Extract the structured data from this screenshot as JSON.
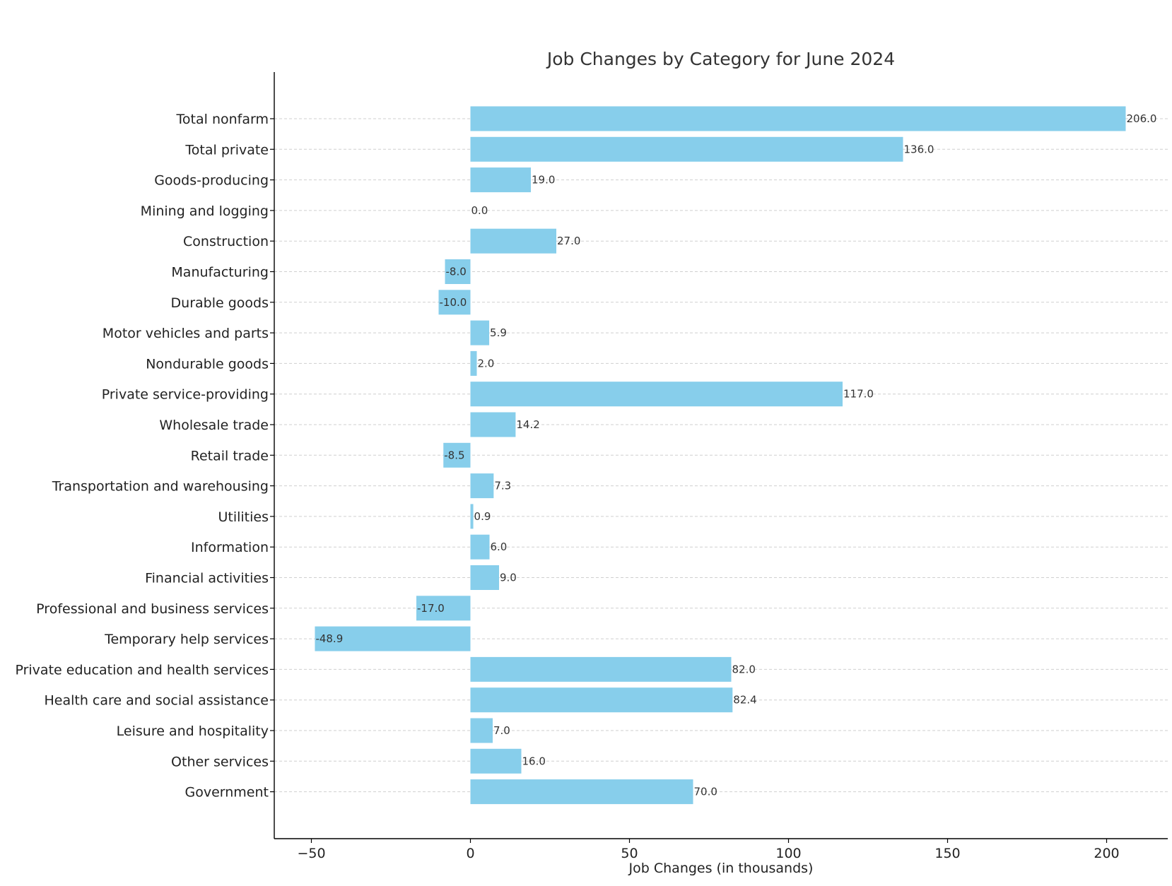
{
  "chart_data": {
    "type": "bar",
    "orientation": "horizontal",
    "title": "Job Changes by Category for June 2024",
    "xlabel": "Job Changes (in thousands)",
    "ylabel": "",
    "xlim": [
      -62,
      220
    ],
    "xticks": [
      -50,
      0,
      50,
      100,
      150,
      200
    ],
    "xtick_labels": [
      "−50",
      "0",
      "50",
      "100",
      "150",
      "200"
    ],
    "grid": "horizontal dashed",
    "bar_color": "#87ceeb",
    "categories": [
      "Total nonfarm",
      "Total private",
      "Goods-producing",
      "Mining and logging",
      "Construction",
      "Manufacturing",
      "Durable goods",
      "Motor vehicles and parts",
      "Nondurable goods",
      "Private service-providing",
      "Wholesale trade",
      "Retail trade",
      "Transportation and warehousing",
      "Utilities",
      "Information",
      "Financial activities",
      "Professional and business services",
      "Temporary help services",
      "Private education and health services",
      "Health care and social assistance",
      "Leisure and hospitality",
      "Other services",
      "Government"
    ],
    "values": [
      206.0,
      136.0,
      19.0,
      0.0,
      27.0,
      -8.0,
      -10.0,
      5.9,
      2.0,
      117.0,
      14.2,
      -8.5,
      7.3,
      0.9,
      6.0,
      9.0,
      -17.0,
      -48.9,
      82.0,
      82.4,
      7.0,
      16.0,
      70.0
    ],
    "value_labels": [
      "206.0",
      "136.0",
      "19.0",
      "0.0",
      "27.0",
      "-8.0",
      "-10.0",
      "5.9",
      "2.0",
      "117.0",
      "14.2",
      "-8.5",
      "7.3",
      "0.9",
      "6.0",
      "9.0",
      "-17.0",
      "-48.9",
      "82.0",
      "82.4",
      "7.0",
      "16.0",
      "70.0"
    ]
  }
}
